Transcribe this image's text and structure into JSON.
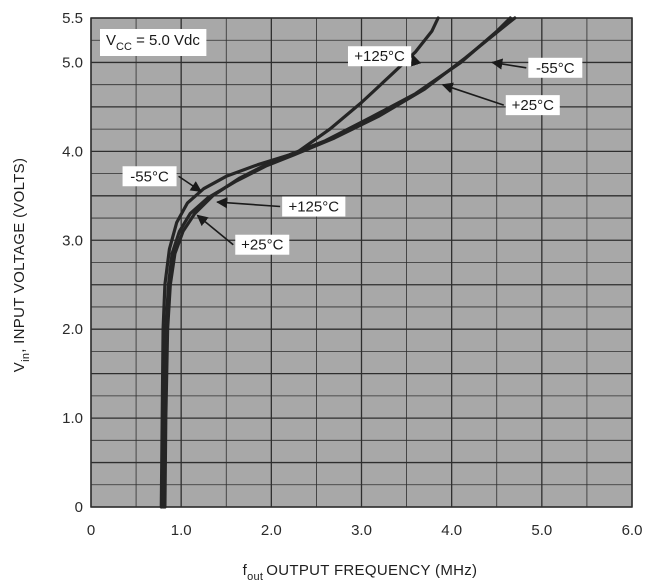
{
  "chart_data": {
    "type": "line",
    "xlabel": "OUTPUT FREQUENCY (MHz)",
    "xlabel_sym": "f",
    "xlabel_sub": "out",
    "ylabel": ", INPUT VOLTAGE (VOLTS)",
    "ylabel_sym": "V",
    "ylabel_sub": "in",
    "xlim": [
      0,
      6.0
    ],
    "ylim": [
      0,
      5.5
    ],
    "x_ticks": [
      0,
      1.0,
      2.0,
      3.0,
      4.0,
      5.0,
      6.0
    ],
    "x_tick_labels": [
      "0",
      "1.0",
      "2.0",
      "3.0",
      "4.0",
      "5.0",
      "6.0"
    ],
    "y_ticks": [
      0,
      1.0,
      2.0,
      3.0,
      4.0,
      5.0,
      5.5
    ],
    "y_tick_labels": [
      "0",
      "1.0",
      "2.0",
      "3.0",
      "4.0",
      "5.0",
      "5.5"
    ],
    "grid": true,
    "condition_label": {
      "sym": "V",
      "sub": "CC",
      "text": " = 5.0 Vdc"
    },
    "colors": {
      "plot_bg": "#a8a8a8",
      "grid": "#2e2e2e",
      "curve": "#252525",
      "label_bg": "#ffffff"
    },
    "series": [
      {
        "name": "-55°C",
        "points": [
          [
            0.78,
            0
          ],
          [
            0.79,
            1.0
          ],
          [
            0.8,
            2.0
          ],
          [
            0.82,
            2.5
          ],
          [
            0.87,
            2.9
          ],
          [
            0.95,
            3.2
          ],
          [
            1.07,
            3.42
          ],
          [
            1.25,
            3.58
          ],
          [
            1.5,
            3.72
          ],
          [
            1.85,
            3.85
          ],
          [
            2.2,
            3.96
          ],
          [
            2.6,
            4.12
          ],
          [
            3.1,
            4.38
          ],
          [
            3.6,
            4.65
          ],
          [
            4.1,
            5.0
          ],
          [
            4.5,
            5.35
          ],
          [
            4.65,
            5.5
          ]
        ]
      },
      {
        "name": "+125°C",
        "points": [
          [
            0.82,
            0
          ],
          [
            0.83,
            1.0
          ],
          [
            0.85,
            2.0
          ],
          [
            0.88,
            2.5
          ],
          [
            0.93,
            2.85
          ],
          [
            1.02,
            3.1
          ],
          [
            1.15,
            3.3
          ],
          [
            1.35,
            3.5
          ],
          [
            1.65,
            3.7
          ],
          [
            2.0,
            3.88
          ],
          [
            2.3,
            4.0
          ],
          [
            2.65,
            4.25
          ],
          [
            3.0,
            4.55
          ],
          [
            3.35,
            4.88
          ],
          [
            3.6,
            5.12
          ],
          [
            3.78,
            5.35
          ],
          [
            3.85,
            5.5
          ]
        ]
      },
      {
        "name": "+25°C",
        "points": [
          [
            0.8,
            0
          ],
          [
            0.81,
            1.0
          ],
          [
            0.83,
            2.0
          ],
          [
            0.86,
            2.5
          ],
          [
            0.9,
            2.85
          ],
          [
            0.98,
            3.1
          ],
          [
            1.1,
            3.3
          ],
          [
            1.3,
            3.48
          ],
          [
            1.6,
            3.66
          ],
          [
            1.95,
            3.84
          ],
          [
            2.25,
            3.96
          ],
          [
            2.7,
            4.15
          ],
          [
            3.2,
            4.4
          ],
          [
            3.7,
            4.7
          ],
          [
            4.15,
            5.05
          ],
          [
            4.55,
            5.38
          ],
          [
            4.7,
            5.5
          ]
        ]
      }
    ],
    "annotations": [
      {
        "text": "+125°C",
        "box_at": [
          2.85,
          5.07
        ],
        "arrow_to": [
          3.57,
          5.08
        ]
      },
      {
        "text": "-55°C",
        "box_at": [
          4.85,
          4.94
        ],
        "arrow_to": [
          4.45,
          5.0
        ]
      },
      {
        "text": "+25°C",
        "box_at": [
          4.6,
          4.52
        ],
        "arrow_to": [
          3.9,
          4.75
        ]
      },
      {
        "text": "-55°C",
        "box_at": [
          0.35,
          3.72
        ],
        "arrow_to": [
          1.22,
          3.55
        ]
      },
      {
        "text": "+125°C",
        "box_at": [
          2.12,
          3.38
        ],
        "arrow_to": [
          1.4,
          3.43
        ]
      },
      {
        "text": "+25°C",
        "box_at": [
          1.6,
          2.95
        ],
        "arrow_to": [
          1.18,
          3.28
        ]
      }
    ]
  }
}
